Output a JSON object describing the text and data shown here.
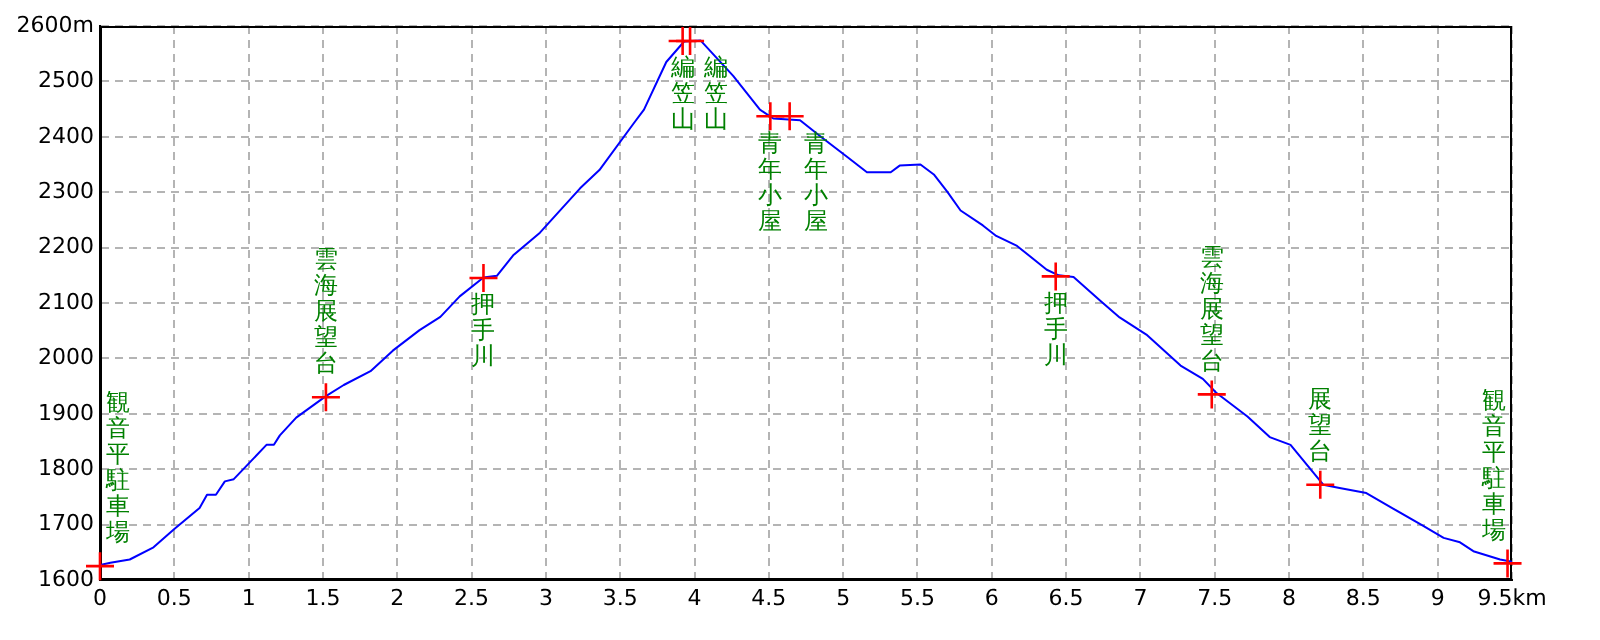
{
  "chart_data": {
    "type": "line",
    "xlim": [
      0,
      9.5
    ],
    "xticks": [
      0,
      0.5,
      1,
      1.5,
      2,
      2.5,
      3,
      3.5,
      4,
      4.5,
      5,
      5.5,
      6,
      6.5,
      7,
      7.5,
      8,
      8.5,
      9,
      {
        "value": 9.5,
        "label": "9.5km"
      }
    ],
    "ylim": [
      1600,
      2600
    ],
    "yticks": [
      1600,
      1700,
      1800,
      1900,
      2000,
      2100,
      2200,
      2300,
      2400,
      2500,
      {
        "value": 2600,
        "label": "2600m"
      }
    ],
    "grid": true,
    "legend": false,
    "series": [
      {
        "type": "line",
        "color": "#0000ff",
        "x": [
          0,
          0.07,
          0.2,
          0.36,
          0.5,
          0.67,
          0.72,
          0.78,
          0.84,
          0.9,
          1.0,
          1.12,
          1.17,
          1.21,
          1.32,
          1.52,
          1.64,
          1.82,
          1.97,
          2.15,
          2.29,
          2.42,
          2.58,
          2.67,
          2.78,
          2.96,
          3.23,
          3.36,
          3.59,
          3.66,
          3.81,
          3.93,
          4.04,
          4.26,
          4.44,
          4.53,
          4.71,
          4.85,
          5.03,
          5.16,
          5.32,
          5.38,
          5.52,
          5.61,
          5.7,
          5.79,
          5.94,
          6.03,
          6.17,
          6.37,
          6.45,
          6.55,
          6.73,
          6.86,
          7.04,
          7.27,
          7.42,
          7.51,
          7.72,
          7.87,
          8.01,
          8.23,
          8.34,
          8.52,
          8.7,
          8.9,
          9.04,
          9.15,
          9.24,
          9.42,
          9.5
        ],
        "values": [
          1627,
          1631,
          1637,
          1659,
          1692,
          1730,
          1754,
          1754,
          1778,
          1782,
          1810,
          1844,
          1844,
          1861,
          1893,
          1932,
          1952,
          1977,
          2014,
          2051,
          2075,
          2112,
          2146,
          2149,
          2186,
          2227,
          2307,
          2340,
          2424,
          2449,
          2535,
          2572,
          2574,
          2510,
          2449,
          2433,
          2430,
          2400,
          2363,
          2336,
          2336,
          2348,
          2350,
          2332,
          2301,
          2267,
          2240,
          2221,
          2203,
          2160,
          2150,
          2147,
          2104,
          2074,
          2043,
          1987,
          1963,
          1938,
          1895,
          1858,
          1844,
          1772,
          1766,
          1757,
          1729,
          1698,
          1676,
          1668,
          1652,
          1637,
          1633
        ]
      },
      {
        "type": "scatter",
        "color": "#ff0000",
        "marker": "cross",
        "x": [
          0,
          1.52,
          2.58,
          3.92,
          3.97,
          4.51,
          4.64,
          6.43,
          7.48,
          8.21,
          9.47
        ],
        "values": [
          1625,
          1930,
          2145,
          2573,
          2573,
          2437,
          2437,
          2148,
          1935,
          1772,
          1630
        ]
      }
    ],
    "annotations": [
      {
        "text": "観音平駐車場",
        "x": 0,
        "y": 1625
      },
      {
        "text": "雲海展望台",
        "x": 1.52,
        "y": 1930
      },
      {
        "text": "押手川",
        "x": 2.58,
        "y": 2145
      },
      {
        "text": "編笠山",
        "x": 3.92,
        "y": 2573
      },
      {
        "text": "編笠山",
        "x": 3.97,
        "y": 2573
      },
      {
        "text": "青年小屋",
        "x": 4.51,
        "y": 2437
      },
      {
        "text": "青年小屋",
        "x": 4.64,
        "y": 2437
      },
      {
        "text": "押手川",
        "x": 6.43,
        "y": 2148
      },
      {
        "text": "雲海展望台",
        "x": 7.48,
        "y": 1935
      },
      {
        "text": "展望台",
        "x": 8.21,
        "y": 1772
      },
      {
        "text": "観音平駐車場",
        "x": 9.47,
        "y": 1630
      }
    ]
  }
}
